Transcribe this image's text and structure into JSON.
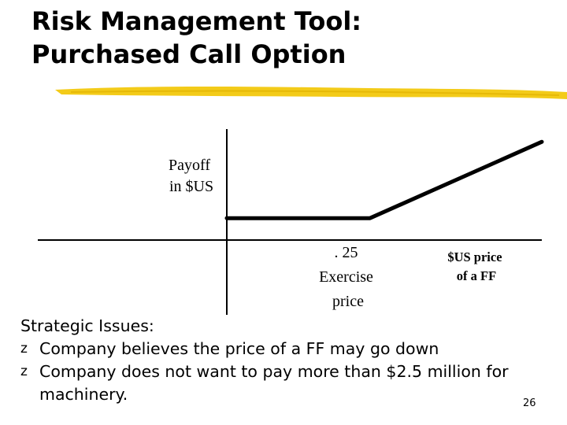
{
  "slide": {
    "title_line1": "Risk Management Tool:",
    "title_line2": "Purchased Call Option",
    "slide_number": "26",
    "accent_color": "#f2c500"
  },
  "chart_data": {
    "type": "line",
    "y_axis_label_line1": "Payoff",
    "y_axis_label_line2": "in $US",
    "x_axis_label_line1": "$US price",
    "x_axis_label_line2": "of a FF",
    "exercise_label_line1": ". 25",
    "exercise_label_line2": "Exercise",
    "exercise_label_line3": "price",
    "exercise_price": 0.25,
    "xlim": [
      0,
      0.55
    ],
    "ylim": [
      -0.38,
      0.35
    ],
    "series": [
      {
        "points": [
          [
            0,
            0
          ],
          [
            0.25,
            0
          ],
          [
            0.55,
            0.3
          ]
        ]
      }
    ]
  },
  "issues": {
    "heading": "Strategic Issues:",
    "bullet_glyph": "z",
    "item1": "Company believes the price of a FF may go down",
    "item2_line1": "Company does not want to pay more than $2.5 million for",
    "item2_line2": "machinery."
  }
}
